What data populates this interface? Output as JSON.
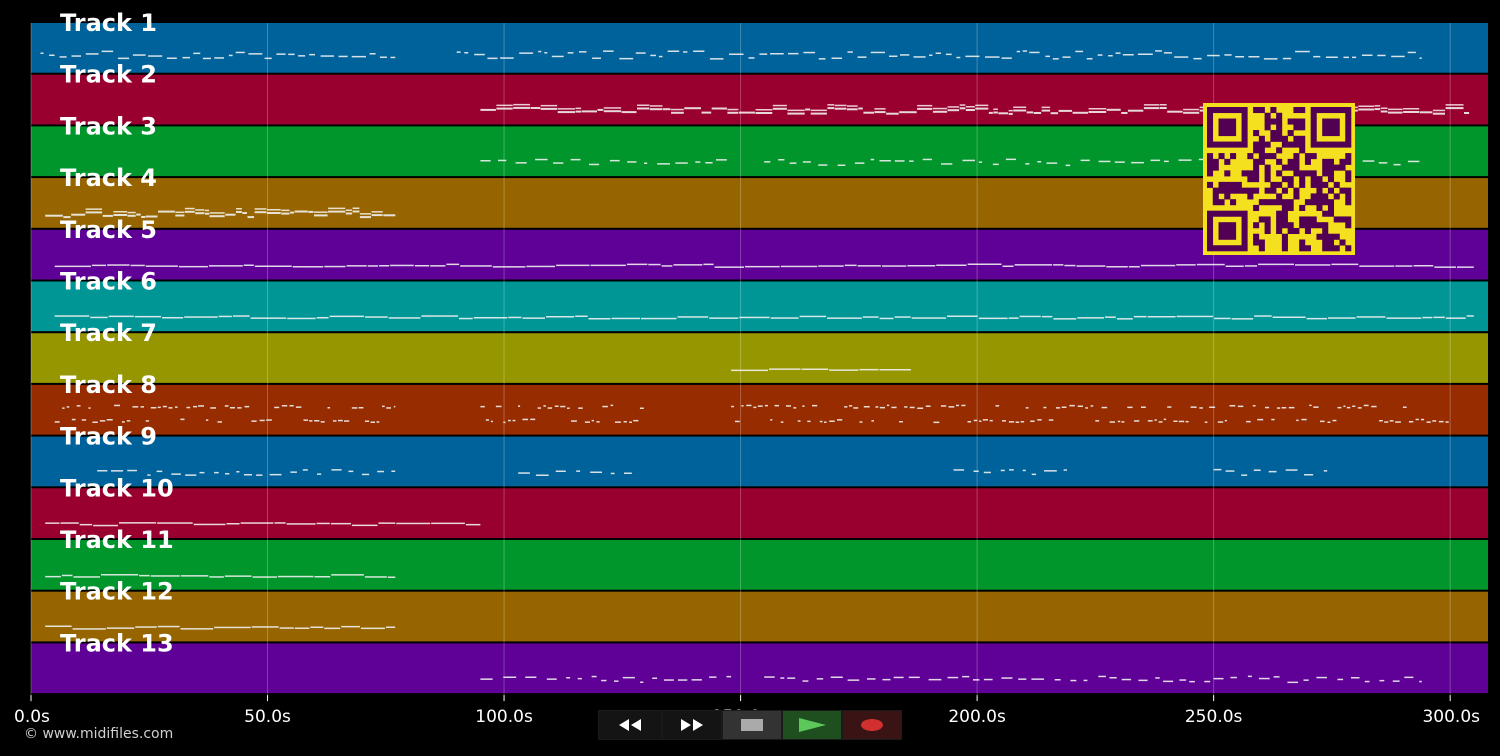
{
  "tracks": [
    {
      "label": "Track 1",
      "color": "#00629a",
      "segments": [
        [
          2,
          77
        ],
        [
          90,
          294
        ]
      ],
      "density": "sparse-multi"
    },
    {
      "label": "Track 2",
      "color": "#99002f",
      "segments": [
        [
          95,
          304
        ]
      ],
      "density": "dense"
    },
    {
      "label": "Track 3",
      "color": "#00962c",
      "segments": [
        [
          95,
          148
        ],
        [
          155,
          294
        ]
      ],
      "density": "sparse"
    },
    {
      "label": "Track 4",
      "color": "#966500",
      "segments": [
        [
          3,
          77
        ]
      ],
      "density": "dense"
    },
    {
      "label": "Track 5",
      "color": "#5f0096",
      "segments": [
        [
          5,
          305
        ]
      ],
      "density": "line"
    },
    {
      "label": "Track 6",
      "color": "#009696",
      "segments": [
        [
          5,
          305
        ]
      ],
      "density": "line"
    },
    {
      "label": "Track 7",
      "color": "#969600",
      "segments": [
        [
          148,
          186
        ]
      ],
      "density": "line"
    },
    {
      "label": "Track 8",
      "color": "#962c00",
      "segments": [
        [
          5,
          77
        ],
        [
          95,
          130
        ],
        [
          148,
          300
        ]
      ],
      "density": "dotted"
    },
    {
      "label": "Track 9",
      "color": "#00629a",
      "segments": [
        [
          14,
          77
        ],
        [
          103,
          127
        ],
        [
          195,
          219
        ],
        [
          250,
          274
        ]
      ],
      "density": "sparse"
    },
    {
      "label": "Track 10",
      "color": "#99002f",
      "segments": [
        [
          3,
          95
        ]
      ],
      "density": "line"
    },
    {
      "label": "Track 11",
      "color": "#00962c",
      "segments": [
        [
          3,
          77
        ]
      ],
      "density": "line"
    },
    {
      "label": "Track 12",
      "color": "#966500",
      "segments": [
        [
          3,
          77
        ]
      ],
      "density": "line"
    },
    {
      "label": "Track 13",
      "color": "#5f0096",
      "segments": [
        [
          95,
          148
        ],
        [
          155,
          294
        ]
      ],
      "density": "sparse"
    }
  ],
  "timeline": {
    "ticks": [
      {
        "v": 0,
        "label": "0.0s"
      },
      {
        "v": 50,
        "label": "50.0s"
      },
      {
        "v": 100,
        "label": "100.0s"
      },
      {
        "v": 150,
        "label": "150.0s"
      },
      {
        "v": 200,
        "label": "200.0s"
      },
      {
        "v": 250,
        "label": "250.0s"
      },
      {
        "v": 300,
        "label": "300.0s"
      }
    ],
    "range": [
      0,
      308
    ]
  },
  "footer": {
    "copyright": "© www.midifiles.com"
  },
  "controls": {
    "rewind": "rewind-icon",
    "forward": "fast-forward-icon",
    "stop": "stop-icon",
    "play": "play-icon",
    "record": "record-icon"
  },
  "qr": {
    "fg": "#520053",
    "bg": "#f5e020"
  }
}
